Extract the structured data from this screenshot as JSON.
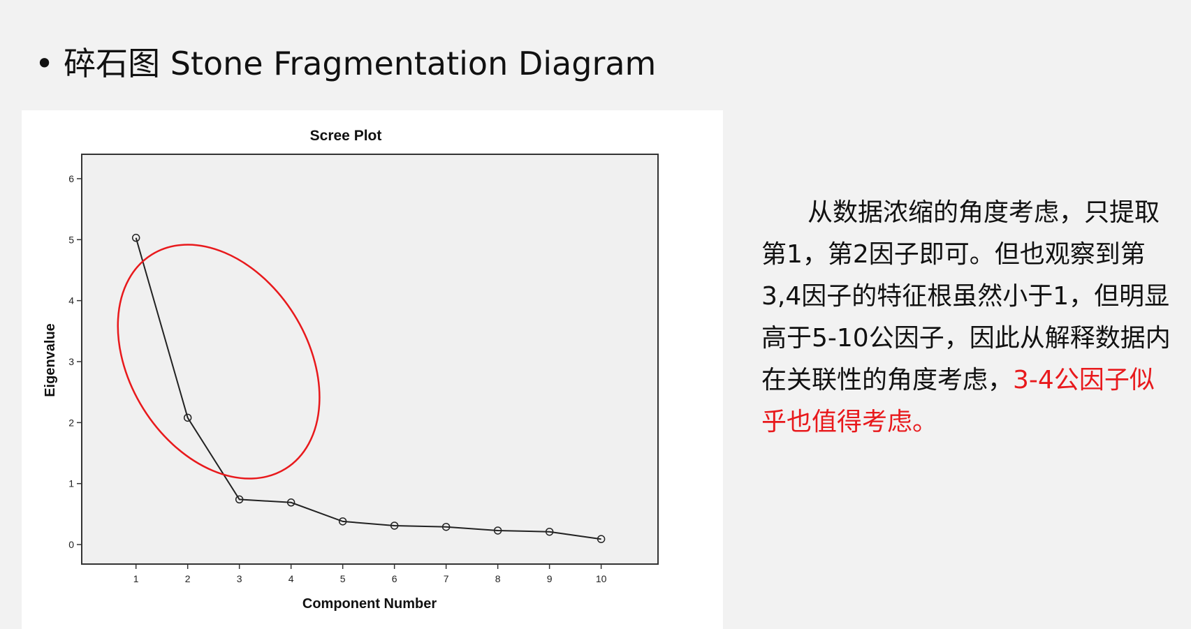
{
  "slide": {
    "bullet": "•",
    "title": "碎石图 Stone Fragmentation Diagram",
    "paragraph_main": "从数据浓缩的角度考虑，只提取第1，第2因子即可。但也观察到第3,4因子的特征根虽然小于1，但明显高于5-10公因子，因此从解释数据内在关联性的角度考虑，",
    "paragraph_highlight": "3-4公因子似乎也值得考虑。",
    "highlight_color": "#e8191c"
  },
  "chart_data": {
    "type": "line",
    "title": "Scree Plot",
    "xlabel": "Component Number",
    "ylabel": "Eigenvalue",
    "x": [
      1,
      2,
      3,
      4,
      5,
      6,
      7,
      8,
      9,
      10
    ],
    "x_tick_labels": [
      "1",
      "2",
      "3",
      "4",
      "5",
      "6",
      "7",
      "8",
      "9",
      "10"
    ],
    "y_ticks": [
      0,
      1,
      2,
      3,
      4,
      5,
      6
    ],
    "y_tick_labels": [
      "0",
      "1",
      "2",
      "3",
      "4",
      "5",
      "6"
    ],
    "xlim": [
      -0.05,
      11.1
    ],
    "ylim": [
      -0.32,
      6.4
    ],
    "series": [
      {
        "values": [
          5.03,
          2.08,
          0.74,
          0.69,
          0.38,
          0.31,
          0.29,
          0.23,
          0.21,
          0.09
        ]
      }
    ],
    "marker": "open-circle",
    "plot_background": "#f0f0f0",
    "line_color": "#222222",
    "annotation_ellipse": {
      "color": "#e8191c",
      "center": [
        2.6,
        3.0
      ],
      "rx": 1.72,
      "ry": 2.07,
      "tilt_deg": -32
    }
  }
}
